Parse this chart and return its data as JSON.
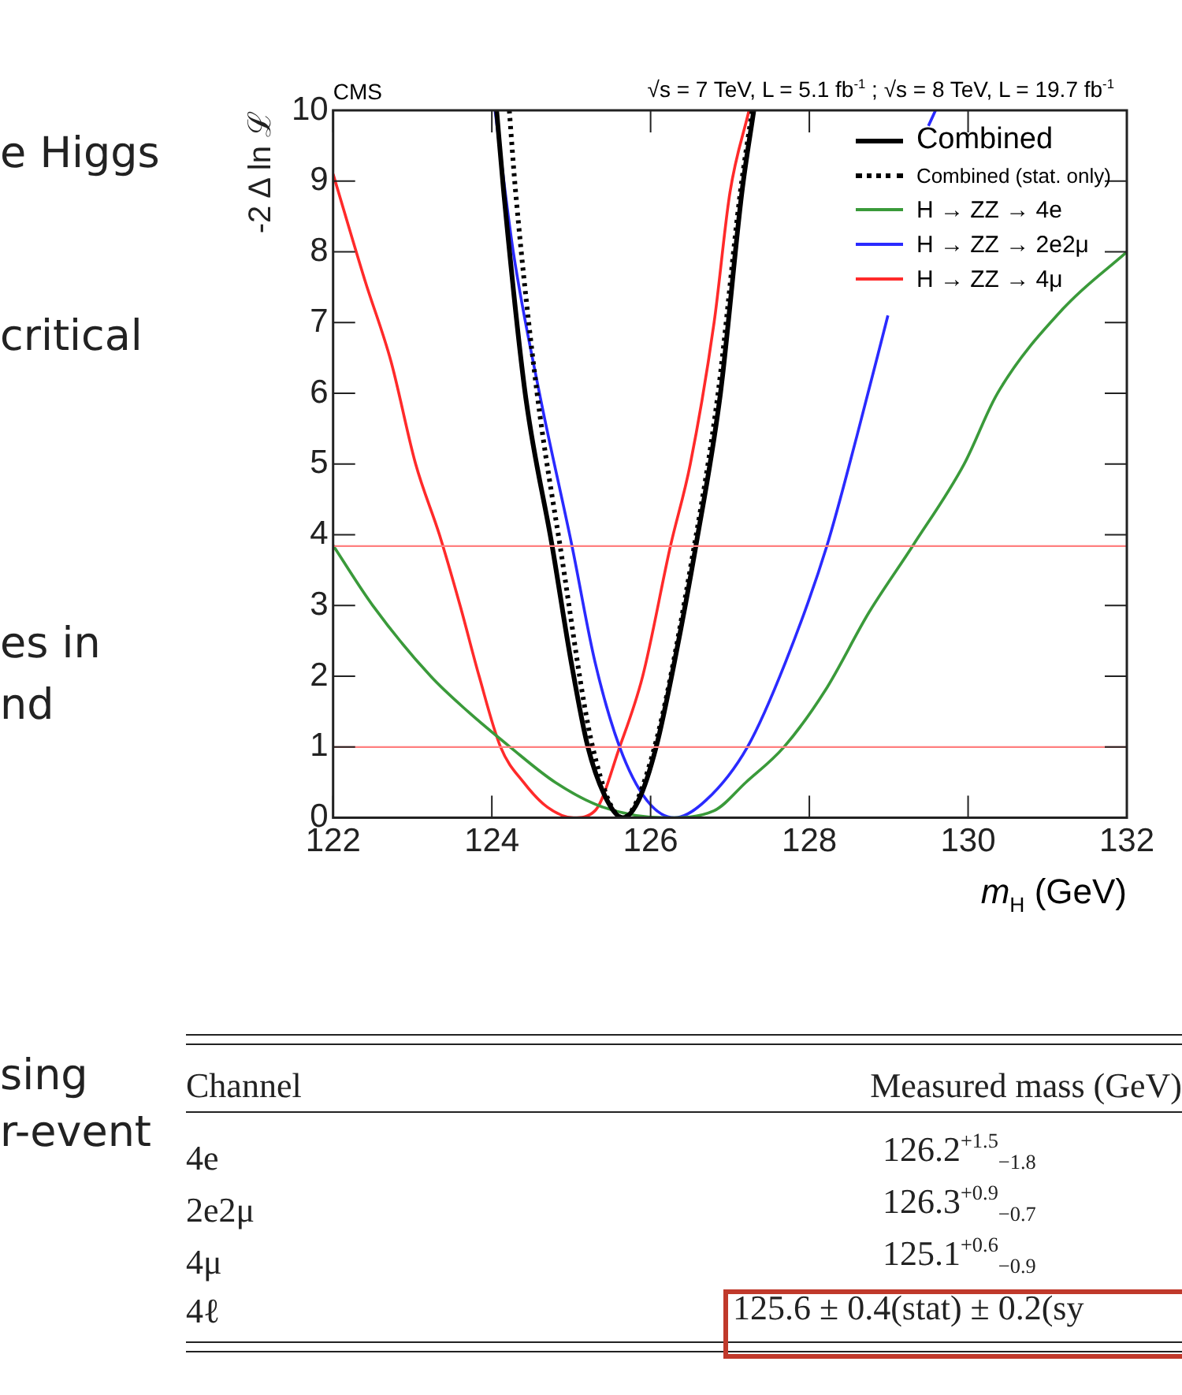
{
  "chart_data": {
    "type": "line",
    "title": "CMS",
    "subtitle": "√s = 7 TeV, L = 5.1 fb$^{-1}$ ; √s = 8 TeV, L = 19.7 fb$^{-1}$",
    "xlabel": "m$_{H}$ (GeV)",
    "ylabel": "-2 Δ ln ℒ",
    "xlim": [
      122,
      132
    ],
    "xticks": [
      122,
      124,
      126,
      128,
      130,
      132
    ],
    "ylim": [
      0,
      10
    ],
    "yticks": [
      0,
      1,
      2,
      3,
      4,
      5,
      6,
      7,
      8,
      9,
      10
    ],
    "grid": false,
    "legend": "top right",
    "series": [
      {
        "name": "Combined",
        "color": "#000000",
        "line_style": "solid",
        "x": [
          124.06,
          124.15,
          124.42,
          124.76,
          125.0,
          125.21,
          125.45,
          125.65,
          125.85,
          126.07,
          126.3,
          126.57,
          126.88,
          127.15,
          127.3
        ],
        "values": [
          10,
          8.84,
          6,
          3.84,
          2.2,
          1,
          0.25,
          0,
          0.25,
          1,
          2.2,
          3.84,
          6,
          8.84,
          10
        ]
      },
      {
        "name": "Combined (stat. only)",
        "color": "#000000",
        "line_style": "dotted",
        "x": [
          124.22,
          124.3,
          124.57,
          124.86,
          125.27,
          125.65,
          126.05,
          126.55,
          126.85,
          127.13,
          127.28
        ],
        "values": [
          10,
          8.84,
          6,
          3.84,
          1,
          0,
          1,
          3.84,
          6,
          8.84,
          10
        ]
      },
      {
        "name": "H → ZZ → 4e",
        "color": "#3a9a3a",
        "line_style": "solid",
        "x": [
          122,
          122.5,
          123.23,
          123.7,
          124.23,
          124.8,
          125.4,
          126.2,
          126.8,
          127.2,
          127.68,
          128.2,
          128.75,
          129.3,
          129.95,
          130.37,
          131.2,
          132
        ],
        "values": [
          3.85,
          3.0,
          2,
          1.5,
          1,
          0.5,
          0.15,
          0,
          0.1,
          0.5,
          1,
          1.8,
          2.9,
          3.84,
          5,
          6,
          7.2,
          8
        ]
      },
      {
        "name": "H → ZZ → 2e2μ",
        "color": "#2a2aff",
        "line_style": "solid",
        "x": [
          124.04,
          124.27,
          124.6,
          125.01,
          125.3,
          125.61,
          125.95,
          126.3,
          126.7,
          127.22,
          127.7,
          128.22,
          128.6,
          128.99,
          129.3,
          129.5,
          129.59
        ],
        "values": [
          10,
          8,
          6,
          3.84,
          2.2,
          1,
          0.25,
          0,
          0.25,
          1,
          2.2,
          3.84,
          5.4,
          7.1,
          null,
          9.78,
          10
        ]
      },
      {
        "name": "H → ZZ → 4μ",
        "color": "#ff2a2a",
        "line_style": "solid",
        "x": [
          122,
          122.4,
          122.73,
          123.04,
          123.34,
          123.6,
          123.84,
          124.11,
          124.4,
          124.7,
          125.03,
          125.3,
          125.61,
          125.9,
          126.25,
          126.5,
          126.8,
          127.0,
          127.24
        ],
        "values": [
          9.1,
          7.6,
          6.45,
          5,
          4,
          3,
          2,
          1,
          0.5,
          0.15,
          0,
          0.1,
          1,
          2,
          3.84,
          5,
          7,
          8.84,
          10
        ]
      }
    ],
    "ref_lines": [
      {
        "axis": "y",
        "value": 1,
        "color": "#ff7f7f"
      },
      {
        "axis": "y",
        "value": 3.84,
        "color": "#ff7f7f"
      }
    ],
    "annotations": [
      "e Higgs",
      "critical",
      "es in",
      "nd",
      "sing",
      "r-event",
      "Channel",
      "Measured mass (GeV)",
      "4e",
      "126.2$^{+1.5}$$_{−1.8}$",
      "2e2μ",
      "126.3$^{+0.9}$$_{−0.7}$",
      "4μ",
      "125.1$^{+0.6}$$_{−0.9}$",
      "4ℓ",
      "125.6 ± 0.4(stat) ± 0.2(sy"
    ]
  }
}
